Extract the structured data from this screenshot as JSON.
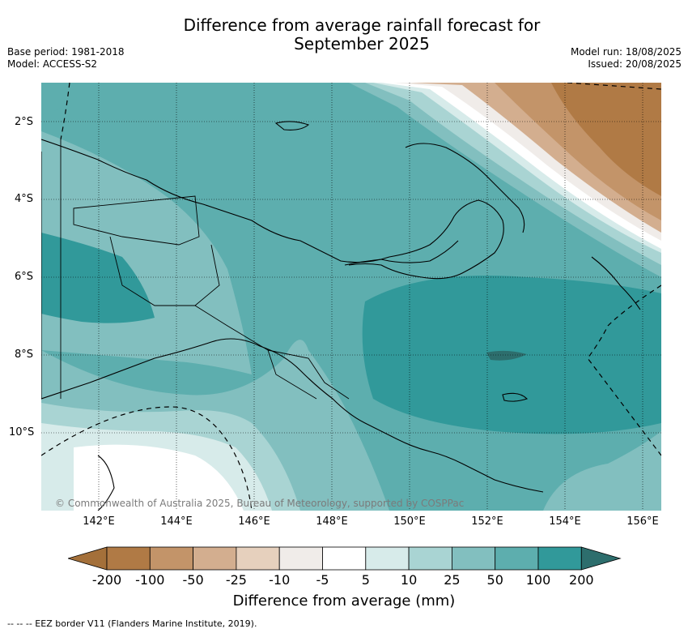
{
  "title_line1": "Difference from average rainfall forecast for",
  "title_line2": "September 2025",
  "base_period": "Base period: 1981-2018",
  "model": "Model: ACCESS-S2",
  "model_run": "Model run: 18/08/2025",
  "issued": "Issued: 20/08/2025",
  "y_ticks": [
    "2°S",
    "4°S",
    "6°S",
    "8°S",
    "10°S"
  ],
  "x_ticks": [
    "142°E",
    "144°E",
    "146°E",
    "148°E",
    "150°E",
    "152°E",
    "154°E",
    "156°E"
  ],
  "copyright": "© Commonwealth of Australia 2025, Bureau of Meteorology, supported by COSPPac",
  "colorbar": {
    "labels": [
      "-200",
      "-100",
      "-50",
      "-25",
      "-10",
      "-5",
      "5",
      "10",
      "25",
      "50",
      "100",
      "200"
    ],
    "colors": [
      "#a4703a",
      "#b07a45",
      "#c39469",
      "#d3ae8f",
      "#e6d0bd",
      "#f0ece9",
      "#ffffff",
      "#d7ebea",
      "#a9d4d3",
      "#82bfbf",
      "#5daeae",
      "#31999a",
      "#2d6e6d"
    ],
    "title": "Difference from average (mm)"
  },
  "footnote": "--  --  -- EEZ border V11 (Flanders Marine Institute, 2019)."
}
